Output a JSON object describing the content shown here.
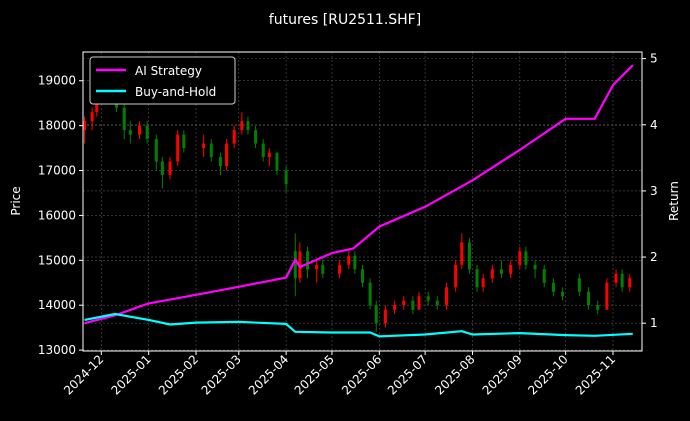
{
  "chart_data": {
    "type": "candlestick+line",
    "title": "futures [RU2511.SHF]",
    "ylabel": "Price",
    "y2label": "Return",
    "ylim": [
      12980,
      19640
    ],
    "y2lim": [
      0.58,
      5.1
    ],
    "xlim": [
      "2024-11-19",
      "2025-11-20"
    ],
    "yticks": [
      13000,
      14000,
      15000,
      16000,
      17000,
      18000,
      19000
    ],
    "y2ticks": [
      1,
      2,
      3,
      4,
      5
    ],
    "xticks": [
      "2024-12",
      "2025-01",
      "2025-02",
      "2025-03",
      "2025-04",
      "2025-05",
      "2025-06",
      "2025-07",
      "2025-08",
      "2025-09",
      "2025-10",
      "2025-11"
    ],
    "grid": true,
    "legend_position": "top-left",
    "colors": {
      "up": "#ff0000",
      "down": "#008000",
      "ai": "#ff00ff",
      "bh": "#00ffff",
      "grid": "#555555"
    },
    "candles_columns": [
      "date",
      "open",
      "high",
      "low",
      "close"
    ],
    "candles": [
      [
        "2024-11-20",
        17900,
        18200,
        17600,
        18100
      ],
      [
        "2024-11-25",
        18100,
        18400,
        17900,
        18300
      ],
      [
        "2024-11-28",
        18300,
        18700,
        18200,
        18600
      ],
      [
        "2024-12-03",
        18600,
        19200,
        18500,
        19000
      ],
      [
        "2024-12-06",
        19000,
        19300,
        18800,
        19100
      ],
      [
        "2024-12-11",
        19100,
        19200,
        18300,
        18400
      ],
      [
        "2024-12-16",
        18400,
        18500,
        17700,
        17900
      ],
      [
        "2024-12-20",
        17900,
        18100,
        17600,
        17800
      ],
      [
        "2024-12-26",
        17800,
        18100,
        17700,
        18000
      ],
      [
        "2024-12-31",
        18000,
        18100,
        17600,
        17700
      ],
      [
        "2025-01-06",
        17700,
        17800,
        17000,
        17200
      ],
      [
        "2025-01-10",
        17200,
        17300,
        16600,
        16900
      ],
      [
        "2025-01-15",
        16900,
        17300,
        16800,
        17200
      ],
      [
        "2025-01-20",
        17200,
        17900,
        17100,
        17800
      ],
      [
        "2025-01-24",
        17800,
        17900,
        17400,
        17500
      ],
      [
        "2025-02-06",
        17500,
        17800,
        17300,
        17600
      ],
      [
        "2025-02-11",
        17600,
        17700,
        17200,
        17300
      ],
      [
        "2025-02-17",
        17300,
        17400,
        16900,
        17100
      ],
      [
        "2025-02-21",
        17100,
        17700,
        17000,
        17600
      ],
      [
        "2025-02-26",
        17600,
        18000,
        17500,
        17900
      ],
      [
        "2025-03-03",
        17900,
        18300,
        17800,
        18100
      ],
      [
        "2025-03-07",
        18100,
        18200,
        17800,
        17900
      ],
      [
        "2025-03-12",
        17900,
        18000,
        17500,
        17600
      ],
      [
        "2025-03-17",
        17600,
        17700,
        17200,
        17300
      ],
      [
        "2025-03-21",
        17300,
        17500,
        17100,
        17400
      ],
      [
        "2025-03-26",
        17400,
        17400,
        16900,
        17000
      ],
      [
        "2025-04-01",
        17000,
        17100,
        16500,
        16700
      ],
      [
        "2025-04-07",
        15200,
        15600,
        14200,
        14600
      ],
      [
        "2025-04-10",
        14600,
        15400,
        14500,
        15200
      ],
      [
        "2025-04-15",
        15200,
        15300,
        14600,
        14800
      ],
      [
        "2025-04-21",
        14800,
        15000,
        14500,
        14900
      ],
      [
        "2025-04-25",
        14900,
        15100,
        14600,
        14700
      ],
      [
        "2025-05-06",
        14700,
        15000,
        14600,
        14900
      ],
      [
        "2025-05-12",
        14900,
        15200,
        14800,
        15100
      ],
      [
        "2025-05-16",
        15100,
        15200,
        14700,
        14800
      ],
      [
        "2025-05-21",
        14800,
        14900,
        14400,
        14500
      ],
      [
        "2025-05-26",
        14500,
        14600,
        13900,
        14000
      ],
      [
        "2025-05-30",
        14000,
        14100,
        13400,
        13600
      ],
      [
        "2025-06-05",
        13600,
        14000,
        13500,
        13900
      ],
      [
        "2025-06-11",
        13900,
        14100,
        13800,
        14000
      ],
      [
        "2025-06-17",
        14000,
        14200,
        13900,
        14100
      ],
      [
        "2025-06-23",
        14100,
        14200,
        13800,
        13900
      ],
      [
        "2025-06-27",
        13900,
        14300,
        13900,
        14200
      ],
      [
        "2025-07-03",
        14200,
        14300,
        14000,
        14100
      ],
      [
        "2025-07-09",
        14100,
        14200,
        13900,
        14000
      ],
      [
        "2025-07-15",
        14000,
        14500,
        13900,
        14400
      ],
      [
        "2025-07-21",
        14400,
        15000,
        14300,
        14900
      ],
      [
        "2025-07-25",
        14900,
        15600,
        14800,
        15400
      ],
      [
        "2025-07-30",
        15400,
        15500,
        14700,
        14800
      ],
      [
        "2025-08-04",
        14800,
        14900,
        14300,
        14400
      ],
      [
        "2025-08-08",
        14400,
        14700,
        14300,
        14600
      ],
      [
        "2025-08-14",
        14600,
        14900,
        14500,
        14800
      ],
      [
        "2025-08-20",
        14800,
        15000,
        14600,
        14700
      ],
      [
        "2025-08-26",
        14700,
        15000,
        14600,
        14900
      ],
      [
        "2025-09-01",
        14900,
        15300,
        14800,
        15200
      ],
      [
        "2025-09-05",
        15200,
        15300,
        14800,
        14900
      ],
      [
        "2025-09-11",
        14900,
        15000,
        14600,
        14800
      ],
      [
        "2025-09-17",
        14800,
        14900,
        14400,
        14500
      ],
      [
        "2025-09-23",
        14500,
        14600,
        14200,
        14300
      ],
      [
        "2025-09-29",
        14300,
        14400,
        14100,
        14200
      ],
      [
        "2025-10-10",
        14600,
        14700,
        14200,
        14300
      ],
      [
        "2025-10-16",
        14300,
        14400,
        13900,
        14000
      ],
      [
        "2025-10-22",
        14000,
        14100,
        13800,
        13900
      ],
      [
        "2025-10-28",
        13900,
        14600,
        13900,
        14500
      ],
      [
        "2025-11-03",
        14500,
        14800,
        14400,
        14700
      ],
      [
        "2025-11-07",
        14700,
        14800,
        14300,
        14400
      ],
      [
        "2025-11-12",
        14400,
        14700,
        14300,
        14600
      ]
    ],
    "series": [
      {
        "name": "AI Strategy",
        "axis": "right",
        "points": [
          [
            "2024-11-20",
            1.0
          ],
          [
            "2024-12-10",
            1.12
          ],
          [
            "2025-01-01",
            1.3
          ],
          [
            "2025-02-01",
            1.43
          ],
          [
            "2025-03-01",
            1.55
          ],
          [
            "2025-04-01",
            1.69
          ],
          [
            "2025-04-07",
            1.96
          ],
          [
            "2025-04-10",
            1.85
          ],
          [
            "2025-05-01",
            2.06
          ],
          [
            "2025-05-15",
            2.13
          ],
          [
            "2025-06-01",
            2.46
          ],
          [
            "2025-07-01",
            2.76
          ],
          [
            "2025-08-01",
            3.16
          ],
          [
            "2025-09-01",
            3.62
          ],
          [
            "2025-10-01",
            4.09
          ],
          [
            "2025-10-20",
            4.09
          ],
          [
            "2025-11-01",
            4.6
          ],
          [
            "2025-11-14",
            4.9
          ]
        ]
      },
      {
        "name": "Buy-and-Hold",
        "axis": "right",
        "points": [
          [
            "2024-11-20",
            1.05
          ],
          [
            "2024-12-10",
            1.14
          ],
          [
            "2025-01-01",
            1.05
          ],
          [
            "2025-01-15",
            0.98
          ],
          [
            "2025-02-01",
            1.01
          ],
          [
            "2025-03-01",
            1.02
          ],
          [
            "2025-04-01",
            0.99
          ],
          [
            "2025-04-07",
            0.87
          ],
          [
            "2025-05-01",
            0.86
          ],
          [
            "2025-05-26",
            0.86
          ],
          [
            "2025-06-01",
            0.8
          ],
          [
            "2025-07-01",
            0.83
          ],
          [
            "2025-07-25",
            0.88
          ],
          [
            "2025-08-01",
            0.83
          ],
          [
            "2025-09-01",
            0.85
          ],
          [
            "2025-10-01",
            0.82
          ],
          [
            "2025-10-20",
            0.81
          ],
          [
            "2025-11-14",
            0.84
          ]
        ]
      }
    ]
  }
}
